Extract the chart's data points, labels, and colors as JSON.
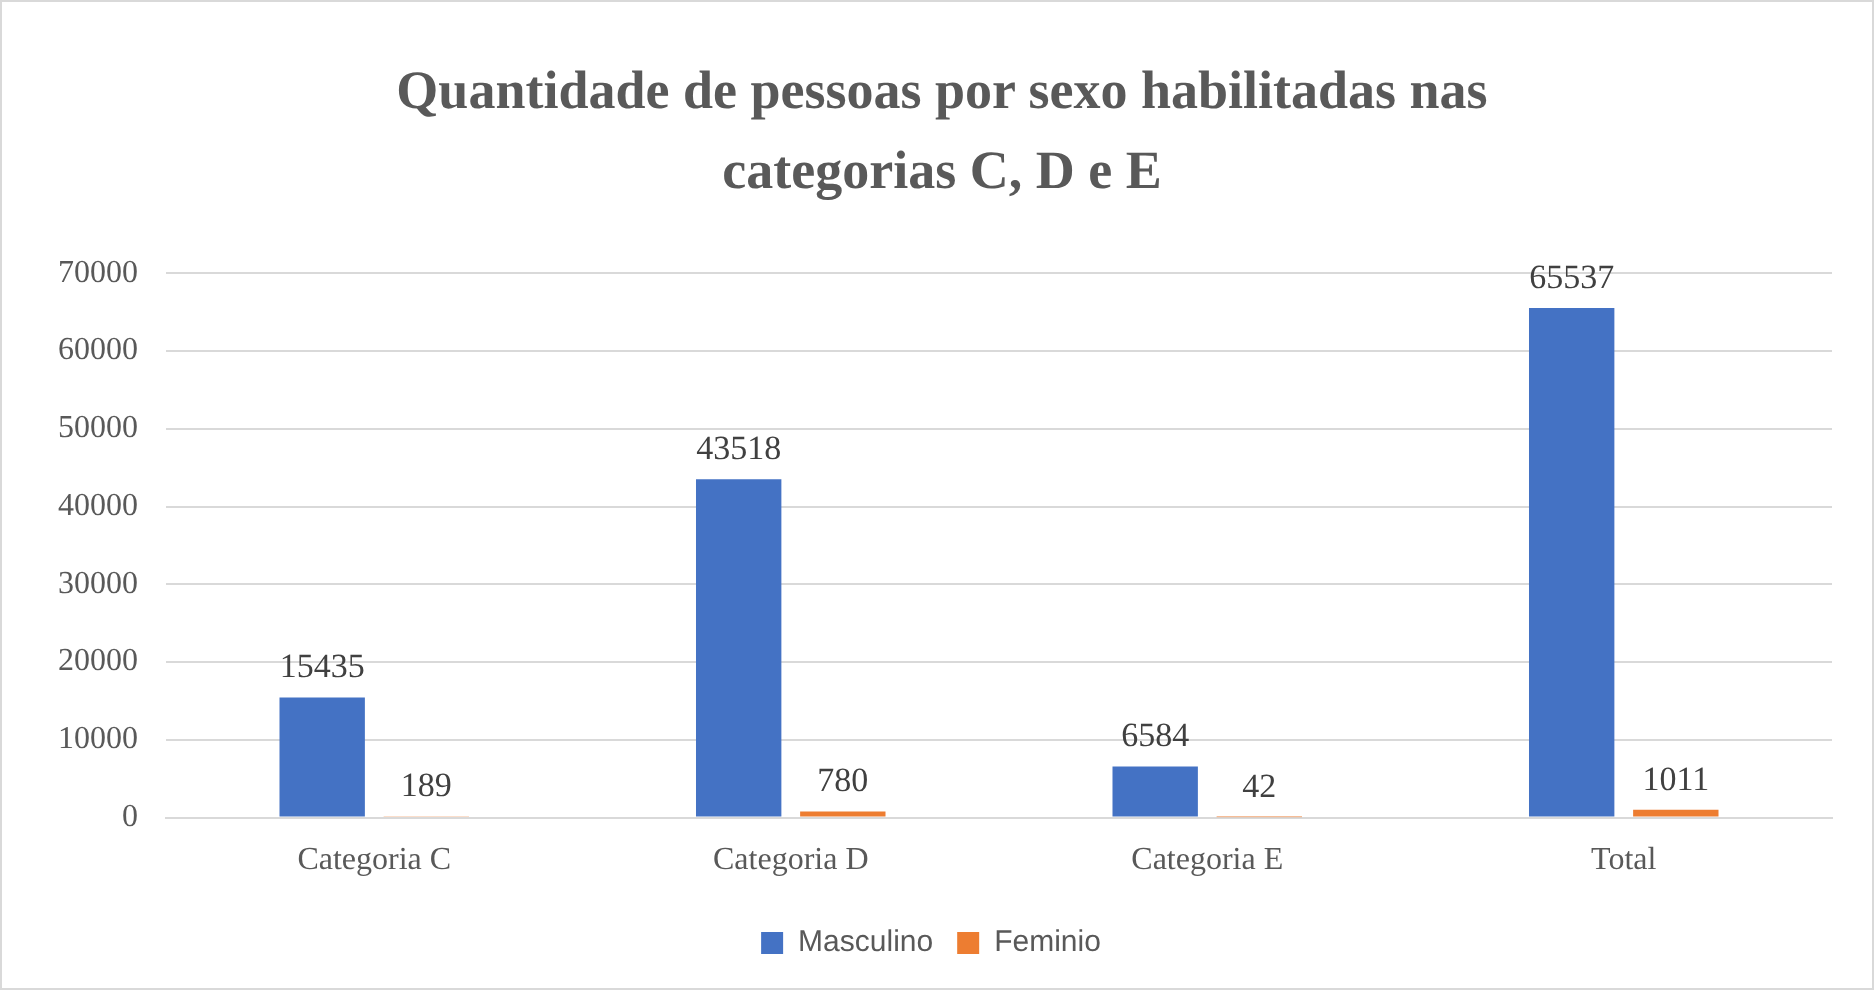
{
  "chart_data": {
    "type": "bar",
    "title": "Quantidade de pessoas por sexo habilitadas nas categorias C, D e E",
    "categories": [
      "Categoria C",
      "Categoria D",
      "Categoria E",
      "Total"
    ],
    "series": [
      {
        "name": "Masculino",
        "color": "#4472c4",
        "values": [
          15435,
          43518,
          6584,
          65537
        ]
      },
      {
        "name": "Feminio",
        "color": "#ed7d31",
        "values": [
          189,
          780,
          42,
          1011
        ]
      }
    ],
    "ylim": [
      0,
      70000
    ],
    "yticks": [
      0,
      10000,
      20000,
      30000,
      40000,
      50000,
      60000,
      70000
    ],
    "grid": "y",
    "legend": "bottom",
    "data_labels": true
  }
}
